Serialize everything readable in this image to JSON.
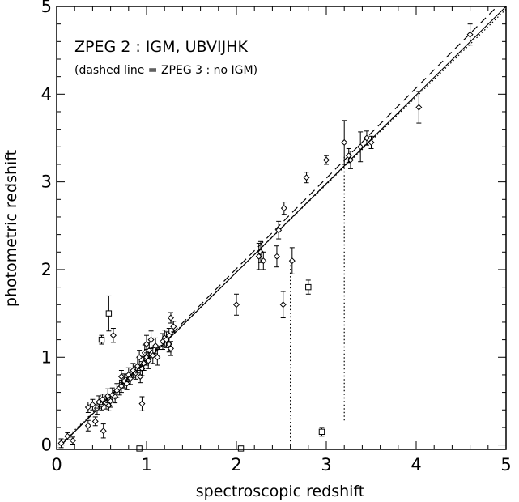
{
  "chart_data": {
    "type": "scatter",
    "title": "",
    "xlabel": "spectroscopic redshift",
    "ylabel": "photometric redshift",
    "xlim": [
      0,
      5
    ],
    "ylim": [
      -0.05,
      5
    ],
    "xticks": [
      "0",
      "1",
      "2",
      "3",
      "4",
      "5"
    ],
    "yticks": [
      "0",
      "1",
      "2",
      "3",
      "4",
      "5"
    ],
    "grid": false,
    "legend": "none",
    "annotations": [
      {
        "text": "ZPEG 2 : IGM, UBVIJHK"
      },
      {
        "text": "(dashed line = ZPEG 3 : no IGM)"
      }
    ],
    "reference_lines": [
      {
        "style": "solid",
        "points": [
          [
            0.05,
            0.0
          ],
          [
            5.0,
            5.0
          ]
        ]
      },
      {
        "style": "dotted",
        "points": [
          [
            0.0,
            -0.03
          ],
          [
            5.0,
            4.97
          ]
        ]
      },
      {
        "style": "dashed",
        "points": [
          [
            0.05,
            0.0
          ],
          [
            4.9,
            5.0
          ]
        ]
      }
    ],
    "vertical_dotted_lines": [
      {
        "x": 2.6,
        "y_from": 0.0,
        "y_to": 2.1
      },
      {
        "x": 3.2,
        "y_from": 0.28,
        "y_to": 3.3
      }
    ],
    "series": [
      {
        "marker": "diamond",
        "points": [
          {
            "x": 0.05,
            "y": 0.02,
            "err": 0.05
          },
          {
            "x": 0.12,
            "y": 0.1,
            "err": 0.04
          },
          {
            "x": 0.18,
            "y": 0.05,
            "err": 0.04
          },
          {
            "x": 0.35,
            "y": 0.22,
            "err": 0.06
          },
          {
            "x": 0.35,
            "y": 0.43,
            "err": 0.06
          },
          {
            "x": 0.4,
            "y": 0.46,
            "err": 0.06
          },
          {
            "x": 0.43,
            "y": 0.27,
            "err": 0.05
          },
          {
            "x": 0.45,
            "y": 0.42,
            "err": 0.07
          },
          {
            "x": 0.47,
            "y": 0.49,
            "err": 0.07
          },
          {
            "x": 0.5,
            "y": 0.46,
            "err": 0.06
          },
          {
            "x": 0.51,
            "y": 0.52,
            "err": 0.06
          },
          {
            "x": 0.52,
            "y": 0.16,
            "err": 0.08
          },
          {
            "x": 0.55,
            "y": 0.48,
            "err": 0.07
          },
          {
            "x": 0.57,
            "y": 0.56,
            "err": 0.08
          },
          {
            "x": 0.58,
            "y": 0.45,
            "err": 0.06
          },
          {
            "x": 0.6,
            "y": 0.5,
            "err": 0.07
          },
          {
            "x": 0.62,
            "y": 0.57,
            "err": 0.08
          },
          {
            "x": 0.63,
            "y": 1.25,
            "err": 0.08
          },
          {
            "x": 0.65,
            "y": 0.55,
            "err": 0.07
          },
          {
            "x": 0.67,
            "y": 0.62,
            "err": 0.08
          },
          {
            "x": 0.7,
            "y": 0.65,
            "err": 0.08
          },
          {
            "x": 0.72,
            "y": 0.67,
            "err": 0.07
          },
          {
            "x": 0.72,
            "y": 0.78,
            "err": 0.07
          },
          {
            "x": 0.75,
            "y": 0.73,
            "err": 0.08
          },
          {
            "x": 0.78,
            "y": 0.7,
            "err": 0.07
          },
          {
            "x": 0.8,
            "y": 0.8,
            "err": 0.08
          },
          {
            "x": 0.82,
            "y": 0.76,
            "err": 0.07
          },
          {
            "x": 0.85,
            "y": 0.85,
            "err": 0.08
          },
          {
            "x": 0.88,
            "y": 0.82,
            "err": 0.07
          },
          {
            "x": 0.9,
            "y": 0.9,
            "err": 0.08
          },
          {
            "x": 0.92,
            "y": 1.0,
            "err": 0.08
          },
          {
            "x": 0.93,
            "y": 0.78,
            "err": 0.07
          },
          {
            "x": 0.95,
            "y": 0.47,
            "err": 0.08
          },
          {
            "x": 0.95,
            "y": 0.87,
            "err": 0.08
          },
          {
            "x": 0.97,
            "y": 0.93,
            "err": 0.08
          },
          {
            "x": 0.98,
            "y": 1.05,
            "err": 0.09
          },
          {
            "x": 1.0,
            "y": 1.0,
            "err": 0.09
          },
          {
            "x": 1.0,
            "y": 1.15,
            "err": 0.1
          },
          {
            "x": 1.02,
            "y": 0.96,
            "err": 0.09
          },
          {
            "x": 1.03,
            "y": 1.08,
            "err": 0.09
          },
          {
            "x": 1.05,
            "y": 1.2,
            "err": 0.1
          },
          {
            "x": 1.07,
            "y": 1.02,
            "err": 0.09
          },
          {
            "x": 1.1,
            "y": 1.13,
            "err": 0.09
          },
          {
            "x": 1.12,
            "y": 1.0,
            "err": 0.09
          },
          {
            "x": 1.18,
            "y": 1.18,
            "err": 0.09
          },
          {
            "x": 1.2,
            "y": 1.22,
            "err": 0.09
          },
          {
            "x": 1.22,
            "y": 1.2,
            "err": 0.09
          },
          {
            "x": 1.25,
            "y": 1.15,
            "err": 0.09
          },
          {
            "x": 1.25,
            "y": 1.25,
            "err": 0.08
          },
          {
            "x": 1.27,
            "y": 1.1,
            "err": 0.08
          },
          {
            "x": 1.27,
            "y": 1.45,
            "err": 0.06
          },
          {
            "x": 1.3,
            "y": 1.35,
            "err": 0.06
          },
          {
            "x": 2.0,
            "y": 1.6,
            "err": 0.12
          },
          {
            "x": 2.25,
            "y": 2.15,
            "err": 0.15
          },
          {
            "x": 2.27,
            "y": 2.2,
            "err": 0.12
          },
          {
            "x": 2.3,
            "y": 2.1,
            "err": 0.1
          },
          {
            "x": 2.45,
            "y": 2.15,
            "err": 0.12
          },
          {
            "x": 2.47,
            "y": 2.45,
            "err": 0.1
          },
          {
            "x": 2.52,
            "y": 1.6,
            "err": 0.15
          },
          {
            "x": 2.53,
            "y": 2.7,
            "err": 0.07
          },
          {
            "x": 2.62,
            "y": 2.1,
            "err": 0.15
          },
          {
            "x": 2.78,
            "y": 3.05,
            "err": 0.06
          },
          {
            "x": 3.0,
            "y": 3.25,
            "err": 0.05
          },
          {
            "x": 3.2,
            "y": 3.45,
            "err": 0.25
          },
          {
            "x": 3.25,
            "y": 3.3,
            "err": 0.08
          },
          {
            "x": 3.27,
            "y": 3.25,
            "err": 0.1
          },
          {
            "x": 3.38,
            "y": 3.4,
            "err": 0.17
          },
          {
            "x": 3.45,
            "y": 3.5,
            "err": 0.08
          },
          {
            "x": 3.5,
            "y": 3.45,
            "err": 0.07
          },
          {
            "x": 4.03,
            "y": 3.85,
            "err": 0.18
          },
          {
            "x": 4.6,
            "y": 4.68,
            "err": 0.12
          }
        ]
      },
      {
        "marker": "square",
        "points": [
          {
            "x": 0.5,
            "y": 1.2,
            "err": 0.05
          },
          {
            "x": 0.58,
            "y": 1.5,
            "err": 0.2
          },
          {
            "x": 2.8,
            "y": 1.8,
            "err": 0.08
          },
          {
            "x": 2.95,
            "y": 0.15,
            "err": 0.05
          },
          {
            "x": 0.92,
            "y": -0.04,
            "err": 0.0
          },
          {
            "x": 2.05,
            "y": -0.04,
            "err": 0.0
          }
        ]
      }
    ]
  }
}
